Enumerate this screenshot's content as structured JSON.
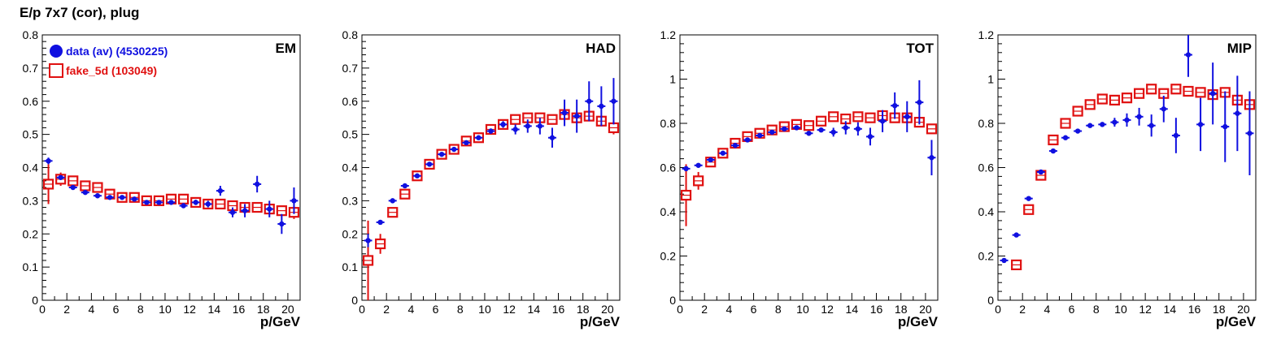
{
  "title": "E/p 7x7 (cor), plug",
  "colors": {
    "data": "#1010e0",
    "fake": "#e01010",
    "axis": "#000000"
  },
  "chart_data": [
    {
      "type": "scatter",
      "title": "EM",
      "xlabel": "p/GeV",
      "ylabel": "",
      "xlim": [
        0,
        21
      ],
      "ylim": [
        0,
        0.8
      ],
      "xticks": [
        0,
        2,
        4,
        6,
        8,
        10,
        12,
        14,
        16,
        18,
        20
      ],
      "yticks": [
        0,
        0.1,
        0.2,
        0.3,
        0.4,
        0.5,
        0.6,
        0.7,
        0.8
      ],
      "ytick_labels": [
        "0",
        "0.1",
        "0.2",
        "0.3",
        "0.4",
        "0.5",
        "0.6",
        "0.7",
        "0.8"
      ],
      "legend": [
        {
          "name": "data (av) (4530225)",
          "marker": "filled-circle"
        },
        {
          "name": "fake_5d (103049)",
          "marker": "open-square"
        }
      ],
      "series": [
        {
          "name": "data (av) (4530225)",
          "x": [
            0.5,
            1.5,
            2.5,
            3.5,
            4.5,
            5.5,
            6.5,
            7.5,
            8.5,
            9.5,
            10.5,
            11.5,
            12.5,
            13.5,
            14.5,
            15.5,
            16.5,
            17.5,
            18.5,
            19.5,
            20.5
          ],
          "y": [
            0.42,
            0.37,
            0.34,
            0.325,
            0.315,
            0.31,
            0.31,
            0.305,
            0.295,
            0.295,
            0.295,
            0.285,
            0.295,
            0.29,
            0.33,
            0.265,
            0.27,
            0.35,
            0.275,
            0.23,
            0.3
          ],
          "yerr": [
            0.01,
            0.005,
            0.005,
            0.005,
            0.005,
            0.005,
            0.005,
            0.005,
            0.005,
            0.005,
            0.005,
            0.005,
            0.008,
            0.01,
            0.015,
            0.015,
            0.02,
            0.025,
            0.025,
            0.03,
            0.04
          ]
        },
        {
          "name": "fake_5d (103049)",
          "x": [
            0.5,
            1.5,
            2.5,
            3.5,
            4.5,
            5.5,
            6.5,
            7.5,
            8.5,
            9.5,
            10.5,
            11.5,
            12.5,
            13.5,
            14.5,
            15.5,
            16.5,
            17.5,
            18.5,
            19.5,
            20.5
          ],
          "y": [
            0.35,
            0.365,
            0.36,
            0.345,
            0.34,
            0.32,
            0.31,
            0.31,
            0.3,
            0.3,
            0.305,
            0.305,
            0.295,
            0.29,
            0.29,
            0.285,
            0.28,
            0.28,
            0.275,
            0.27,
            0.265
          ],
          "yerr": [
            0.06,
            0.02,
            0.015,
            0.012,
            0.01,
            0.01,
            0.01,
            0.01,
            0.01,
            0.01,
            0.01,
            0.01,
            0.01,
            0.01,
            0.01,
            0.01,
            0.01,
            0.01,
            0.01,
            0.015,
            0.02
          ]
        }
      ]
    },
    {
      "type": "scatter",
      "title": "HAD",
      "xlabel": "p/GeV",
      "ylabel": "",
      "xlim": [
        0,
        21
      ],
      "ylim": [
        0,
        0.8
      ],
      "xticks": [
        0,
        2,
        4,
        6,
        8,
        10,
        12,
        14,
        16,
        18,
        20
      ],
      "yticks": [
        0,
        0.1,
        0.2,
        0.3,
        0.4,
        0.5,
        0.6,
        0.7,
        0.8
      ],
      "ytick_labels": [
        "0",
        "0.1",
        "0.2",
        "0.3",
        "0.4",
        "0.5",
        "0.6",
        "0.7",
        "0.8"
      ],
      "series": [
        {
          "name": "data",
          "x": [
            0.5,
            1.5,
            2.5,
            3.5,
            4.5,
            5.5,
            6.5,
            7.5,
            8.5,
            9.5,
            10.5,
            11.5,
            12.5,
            13.5,
            14.5,
            15.5,
            16.5,
            17.5,
            18.5,
            19.5,
            20.5
          ],
          "y": [
            0.18,
            0.235,
            0.3,
            0.345,
            0.375,
            0.41,
            0.44,
            0.455,
            0.475,
            0.49,
            0.51,
            0.53,
            0.515,
            0.525,
            0.525,
            0.49,
            0.565,
            0.555,
            0.6,
            0.585,
            0.6
          ],
          "yerr": [
            0.02,
            0.005,
            0.005,
            0.005,
            0.005,
            0.005,
            0.005,
            0.005,
            0.005,
            0.005,
            0.008,
            0.01,
            0.015,
            0.02,
            0.025,
            0.03,
            0.04,
            0.05,
            0.06,
            0.06,
            0.07
          ]
        },
        {
          "name": "fake",
          "x": [
            0.5,
            1.5,
            2.5,
            3.5,
            4.5,
            5.5,
            6.5,
            7.5,
            8.5,
            9.5,
            10.5,
            11.5,
            12.5,
            13.5,
            14.5,
            15.5,
            16.5,
            17.5,
            18.5,
            19.5,
            20.5
          ],
          "y": [
            0.12,
            0.17,
            0.265,
            0.32,
            0.375,
            0.41,
            0.44,
            0.455,
            0.48,
            0.49,
            0.515,
            0.53,
            0.545,
            0.55,
            0.55,
            0.545,
            0.56,
            0.55,
            0.555,
            0.54,
            0.52
          ],
          "yerr": [
            0.12,
            0.03,
            0.015,
            0.015,
            0.012,
            0.01,
            0.01,
            0.01,
            0.01,
            0.01,
            0.01,
            0.01,
            0.01,
            0.01,
            0.01,
            0.01,
            0.01,
            0.01,
            0.015,
            0.015,
            0.02
          ]
        }
      ]
    },
    {
      "type": "scatter",
      "title": "TOT",
      "xlabel": "p/GeV",
      "ylabel": "",
      "xlim": [
        0,
        21
      ],
      "ylim": [
        0,
        1.2
      ],
      "xticks": [
        0,
        2,
        4,
        6,
        8,
        10,
        12,
        14,
        16,
        18,
        20
      ],
      "yticks": [
        0,
        0.2,
        0.4,
        0.6,
        0.8,
        1.0,
        1.2
      ],
      "ytick_labels": [
        "0",
        "0.2",
        "0.4",
        "0.6",
        "0.8",
        "1",
        "1.2"
      ],
      "series": [
        {
          "name": "data",
          "x": [
            0.5,
            1.5,
            2.5,
            3.5,
            4.5,
            5.5,
            6.5,
            7.5,
            8.5,
            9.5,
            10.5,
            11.5,
            12.5,
            13.5,
            14.5,
            15.5,
            16.5,
            17.5,
            18.5,
            19.5,
            20.5
          ],
          "y": [
            0.595,
            0.61,
            0.635,
            0.665,
            0.7,
            0.725,
            0.745,
            0.76,
            0.775,
            0.78,
            0.755,
            0.77,
            0.76,
            0.78,
            0.775,
            0.74,
            0.81,
            0.88,
            0.83,
            0.895,
            0.645
          ],
          "yerr": [
            0.01,
            0.005,
            0.005,
            0.005,
            0.005,
            0.005,
            0.005,
            0.005,
            0.005,
            0.005,
            0.008,
            0.01,
            0.02,
            0.03,
            0.03,
            0.04,
            0.05,
            0.06,
            0.07,
            0.1,
            0.08
          ]
        },
        {
          "name": "fake",
          "x": [
            0.5,
            1.5,
            2.5,
            3.5,
            4.5,
            5.5,
            6.5,
            7.5,
            8.5,
            9.5,
            10.5,
            11.5,
            12.5,
            13.5,
            14.5,
            15.5,
            16.5,
            17.5,
            18.5,
            19.5,
            20.5
          ],
          "y": [
            0.475,
            0.54,
            0.625,
            0.665,
            0.71,
            0.74,
            0.755,
            0.77,
            0.785,
            0.795,
            0.79,
            0.81,
            0.83,
            0.82,
            0.83,
            0.825,
            0.835,
            0.825,
            0.825,
            0.805,
            0.775
          ],
          "yerr": [
            0.14,
            0.04,
            0.02,
            0.015,
            0.012,
            0.01,
            0.01,
            0.01,
            0.01,
            0.01,
            0.01,
            0.01,
            0.01,
            0.01,
            0.01,
            0.01,
            0.01,
            0.01,
            0.015,
            0.015,
            0.02
          ]
        }
      ]
    },
    {
      "type": "scatter",
      "title": "MIP",
      "xlabel": "p/GeV",
      "ylabel": "",
      "xlim": [
        0,
        21
      ],
      "ylim": [
        0,
        1.2
      ],
      "xticks": [
        0,
        2,
        4,
        6,
        8,
        10,
        12,
        14,
        16,
        18,
        20
      ],
      "yticks": [
        0,
        0.2,
        0.4,
        0.6,
        0.8,
        1.0,
        1.2
      ],
      "ytick_labels": [
        "0",
        "0.2",
        "0.4",
        "0.6",
        "0.8",
        "1",
        "1.2"
      ],
      "series": [
        {
          "name": "data",
          "x": [
            0.5,
            1.5,
            2.5,
            3.5,
            4.5,
            5.5,
            6.5,
            7.5,
            8.5,
            9.5,
            10.5,
            11.5,
            12.5,
            13.5,
            14.5,
            15.5,
            16.5,
            17.5,
            18.5,
            19.5,
            20.5
          ],
          "y": [
            0.18,
            0.295,
            0.46,
            0.58,
            0.675,
            0.735,
            0.765,
            0.79,
            0.795,
            0.805,
            0.815,
            0.83,
            0.79,
            0.865,
            0.745,
            1.11,
            0.795,
            0.935,
            0.785,
            0.845,
            0.755
          ],
          "yerr": [
            0.005,
            0.005,
            0.005,
            0.005,
            0.005,
            0.005,
            0.005,
            0.005,
            0.01,
            0.02,
            0.03,
            0.04,
            0.05,
            0.06,
            0.08,
            0.1,
            0.12,
            0.14,
            0.16,
            0.17,
            0.19
          ]
        },
        {
          "name": "fake",
          "x": [
            0.5,
            1.5,
            2.5,
            3.5,
            4.5,
            5.5,
            6.5,
            7.5,
            8.5,
            9.5,
            10.5,
            11.5,
            12.5,
            13.5,
            14.5,
            15.5,
            16.5,
            17.5,
            18.5,
            19.5,
            20.5
          ],
          "y": [
            null,
            0.16,
            0.41,
            0.565,
            0.725,
            0.8,
            0.855,
            0.885,
            0.91,
            0.905,
            0.915,
            0.935,
            0.955,
            0.935,
            0.955,
            0.945,
            0.94,
            0.93,
            0.94,
            0.905,
            0.885
          ],
          "yerr": [
            0,
            0.02,
            0.015,
            0.015,
            0.012,
            0.01,
            0.01,
            0.01,
            0.01,
            0.01,
            0.01,
            0.01,
            0.01,
            0.01,
            0.01,
            0.01,
            0.01,
            0.01,
            0.015,
            0.015,
            0.02
          ]
        }
      ]
    }
  ]
}
